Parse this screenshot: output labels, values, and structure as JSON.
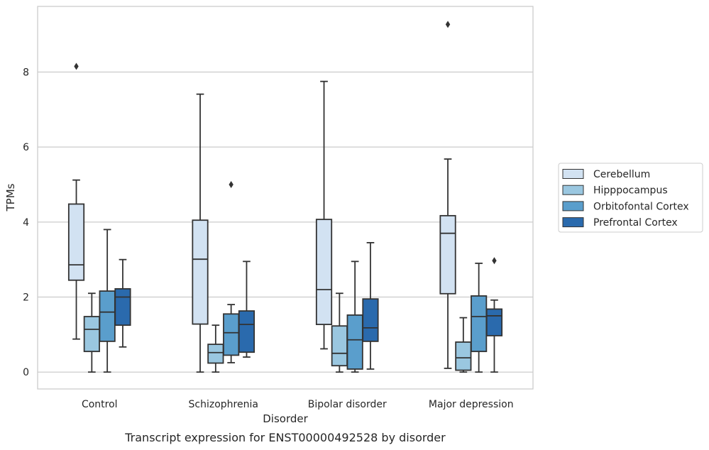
{
  "chart_data": {
    "type": "box",
    "xlabel": "Disorder",
    "ylabel": "TPMs",
    "caption": "Transcript expression for ENST00000492528 by disorder",
    "ylim": [
      -0.45,
      9.75
    ],
    "yticks": [
      0,
      2,
      4,
      6,
      8
    ],
    "grid": true,
    "legend_position": "right",
    "categories": [
      "Control",
      "Schizophrenia",
      "Bipolar disorder",
      "Major depression"
    ],
    "series": [
      {
        "name": "Cerebellum",
        "color": "#d2e2f2",
        "boxes": [
          {
            "whisker_low": 0.88,
            "q1": 2.45,
            "median": 2.86,
            "q3": 4.48,
            "whisker_high": 5.12,
            "outliers": [
              8.15
            ]
          },
          {
            "whisker_low": 0.0,
            "q1": 1.28,
            "median": 3.01,
            "q3": 4.05,
            "whisker_high": 7.41,
            "outliers": []
          },
          {
            "whisker_low": 0.62,
            "q1": 1.27,
            "median": 2.2,
            "q3": 4.07,
            "whisker_high": 7.75,
            "outliers": []
          },
          {
            "whisker_low": 0.1,
            "q1": 2.09,
            "median": 3.7,
            "q3": 4.17,
            "whisker_high": 5.68,
            "outliers": [
              9.27
            ]
          }
        ]
      },
      {
        "name": "Hipppocampus",
        "color": "#9ac7e0",
        "boxes": [
          {
            "whisker_low": 0.0,
            "q1": 0.55,
            "median": 1.14,
            "q3": 1.48,
            "whisker_high": 2.1,
            "outliers": []
          },
          {
            "whisker_low": 0.0,
            "q1": 0.24,
            "median": 0.52,
            "q3": 0.74,
            "whisker_high": 1.25,
            "outliers": []
          },
          {
            "whisker_low": 0.0,
            "q1": 0.17,
            "median": 0.5,
            "q3": 1.23,
            "whisker_high": 2.1,
            "outliers": []
          },
          {
            "whisker_low": 0.0,
            "q1": 0.05,
            "median": 0.38,
            "q3": 0.8,
            "whisker_high": 1.45,
            "outliers": []
          }
        ]
      },
      {
        "name": "Orbitofontal Cortex",
        "color": "#5a9ecc",
        "boxes": [
          {
            "whisker_low": 0.0,
            "q1": 0.82,
            "median": 1.6,
            "q3": 2.16,
            "whisker_high": 3.8,
            "outliers": []
          },
          {
            "whisker_low": 0.25,
            "q1": 0.45,
            "median": 1.05,
            "q3": 1.55,
            "whisker_high": 1.8,
            "outliers": [
              5.0
            ]
          },
          {
            "whisker_low": 0.0,
            "q1": 0.08,
            "median": 0.86,
            "q3": 1.52,
            "whisker_high": 2.95,
            "outliers": []
          },
          {
            "whisker_low": 0.0,
            "q1": 0.55,
            "median": 1.48,
            "q3": 2.03,
            "whisker_high": 2.9,
            "outliers": []
          }
        ]
      },
      {
        "name": "Prefrontal Cortex",
        "color": "#2a6aad",
        "boxes": [
          {
            "whisker_low": 0.67,
            "q1": 1.25,
            "median": 2.0,
            "q3": 2.22,
            "whisker_high": 3.0,
            "outliers": []
          },
          {
            "whisker_low": 0.4,
            "q1": 0.53,
            "median": 1.27,
            "q3": 1.63,
            "whisker_high": 2.95,
            "outliers": []
          },
          {
            "whisker_low": 0.08,
            "q1": 0.82,
            "median": 1.18,
            "q3": 1.95,
            "whisker_high": 3.45,
            "outliers": []
          },
          {
            "whisker_low": 0.0,
            "q1": 0.97,
            "median": 1.5,
            "q3": 1.68,
            "whisker_high": 1.92,
            "outliers": [
              2.97
            ]
          }
        ]
      }
    ]
  }
}
